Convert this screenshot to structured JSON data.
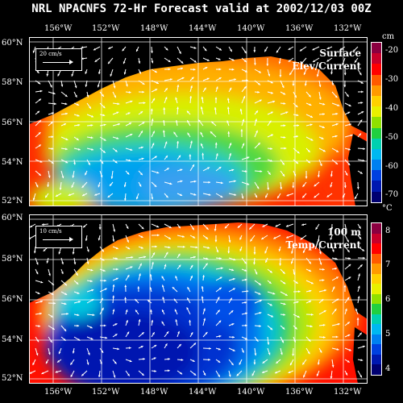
{
  "title": "NRL NPACNFS 72-Hr Forecast valid at 2002/12/03 00Z",
  "lon_labels": [
    "156°W",
    "152°W",
    "148°W",
    "144°W",
    "140°W",
    "136°W",
    "132°W"
  ],
  "lat_labels": [
    "60°N",
    "58°N",
    "56°N",
    "54°N",
    "52°N"
  ],
  "top_panel": {
    "label_line1": "Surface",
    "label_line2": "Elev/Current",
    "scale_vector": "20 cm/s",
    "unit": "cm",
    "colorbar_ticks": [
      "-20",
      "-30",
      "-40",
      "-50",
      "-60",
      "-70"
    ]
  },
  "bottom_panel": {
    "label_line1": "100 m",
    "label_line2": "Temp/Current",
    "scale_vector": "10 cm/s",
    "unit": "°C",
    "colorbar_ticks": [
      "8",
      "7",
      "6",
      "5",
      "4"
    ]
  },
  "colors": {
    "palette": [
      "#8b0040",
      "#c8002a",
      "#ff0000",
      "#ff5a00",
      "#ff9a00",
      "#ffd000",
      "#e8f000",
      "#90e000",
      "#20d040",
      "#00d0b0",
      "#00b8f0",
      "#0080f0",
      "#0040e0",
      "#0018b0",
      "#000070"
    ],
    "land": "#000000",
    "vectors": "#ffffff"
  }
}
